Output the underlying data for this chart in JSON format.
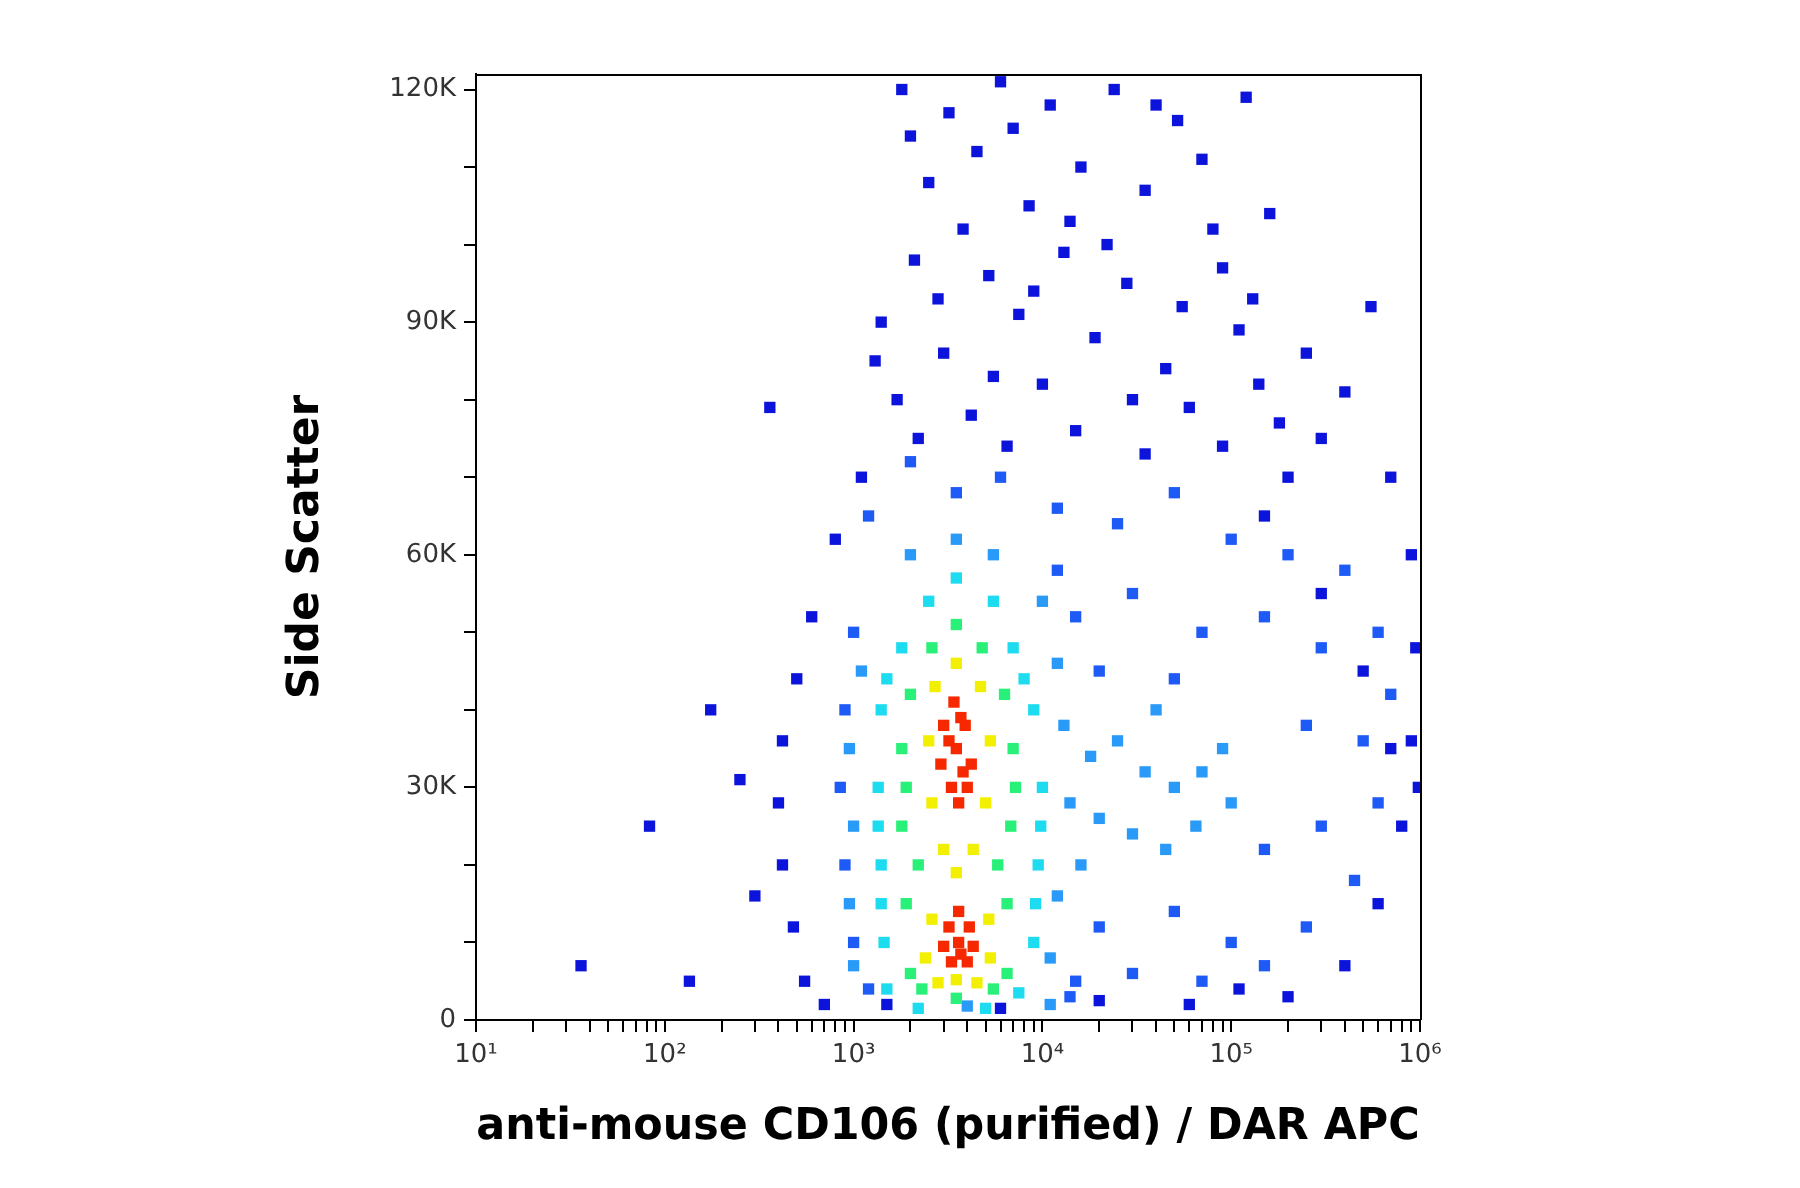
{
  "chart_data": {
    "type": "scatter",
    "xlabel": "anti-mouse CD106 (purified) / DAR APC",
    "ylabel": "Side Scatter",
    "log": "x",
    "marker": "square",
    "xlim": [
      10,
      1000000
    ],
    "ylim": [
      0,
      122000
    ],
    "xticks": [
      {
        "value": 10,
        "label": "10¹"
      },
      {
        "value": 20,
        "label": null
      },
      {
        "value": 30,
        "label": null
      },
      {
        "value": 40,
        "label": null
      },
      {
        "value": 50,
        "label": null
      },
      {
        "value": 60,
        "label": null
      },
      {
        "value": 70,
        "label": null
      },
      {
        "value": 80,
        "label": null
      },
      {
        "value": 90,
        "label": null
      },
      {
        "value": 100,
        "label": "10²"
      },
      {
        "value": 200,
        "label": null
      },
      {
        "value": 300,
        "label": null
      },
      {
        "value": 400,
        "label": null
      },
      {
        "value": 500,
        "label": null
      },
      {
        "value": 600,
        "label": null
      },
      {
        "value": 700,
        "label": null
      },
      {
        "value": 800,
        "label": null
      },
      {
        "value": 900,
        "label": null
      },
      {
        "value": 1000,
        "label": "10³"
      },
      {
        "value": 2000,
        "label": null
      },
      {
        "value": 3000,
        "label": null
      },
      {
        "value": 4000,
        "label": null
      },
      {
        "value": 5000,
        "label": null
      },
      {
        "value": 6000,
        "label": null
      },
      {
        "value": 7000,
        "label": null
      },
      {
        "value": 8000,
        "label": null
      },
      {
        "value": 9000,
        "label": null
      },
      {
        "value": 10000,
        "label": "10⁴"
      },
      {
        "value": 20000,
        "label": null
      },
      {
        "value": 30000,
        "label": null
      },
      {
        "value": 40000,
        "label": null
      },
      {
        "value": 50000,
        "label": null
      },
      {
        "value": 60000,
        "label": null
      },
      {
        "value": 70000,
        "label": null
      },
      {
        "value": 80000,
        "label": null
      },
      {
        "value": 90000,
        "label": null
      },
      {
        "value": 100000,
        "label": "10⁵"
      },
      {
        "value": 200000,
        "label": null
      },
      {
        "value": 300000,
        "label": null
      },
      {
        "value": 400000,
        "label": null
      },
      {
        "value": 500000,
        "label": null
      },
      {
        "value": 600000,
        "label": null
      },
      {
        "value": 700000,
        "label": null
      },
      {
        "value": 800000,
        "label": null
      },
      {
        "value": 900000,
        "label": null
      },
      {
        "value": 1000000,
        "label": "10⁶"
      }
    ],
    "yticks": [
      0,
      {
        "value": 10000,
        "label": null
      },
      {
        "value": 20000,
        "label": null
      },
      {
        "value": 30000,
        "label": "30K"
      },
      {
        "value": 40000,
        "label": null
      },
      {
        "value": 50000,
        "label": null
      },
      {
        "value": 60000,
        "label": "60K"
      },
      {
        "value": 70000,
        "label": null
      },
      {
        "value": 80000,
        "label": null
      },
      {
        "value": 90000,
        "label": "90K"
      },
      {
        "value": 100000,
        "label": null
      },
      {
        "value": 110000,
        "label": null
      },
      {
        "value": 120000,
        "label": "120K"
      }
    ],
    "series": [
      {
        "color": "#0c14dc",
        "x": [
          1800,
          3200,
          6000,
          11000,
          24000,
          52000,
          120000,
          2500,
          4500,
          8500,
          16000,
          35000,
          70000,
          160000,
          2100,
          5200,
          13000,
          28000,
          90000,
          1400,
          3000,
          7500,
          19000,
          45000,
          110000,
          250000,
          1700,
          4200,
          10000,
          60000,
          180000,
          400000,
          1100,
          800,
          600,
          500,
          420,
          400,
          420,
          480,
          550,
          700,
          360,
          175,
          83,
          36,
          135,
          300,
          250,
          700000,
          900000,
          950000,
          900000,
          800000,
          600000,
          400000,
          200000,
          550000,
          980000,
          1500,
          6000,
          20000,
          60000,
          110000,
          300000,
          150000,
          500000,
          700000,
          2000,
          3800,
          7000,
          14000,
          40000,
          80000,
          2800,
          9000,
          22000,
          55000,
          130000,
          1300,
          5500,
          30000,
          140000,
          300000,
          2200,
          6500,
          15000,
          35000,
          90000,
          200000
        ],
        "values": [
          120000,
          117000,
          121000,
          118000,
          120000,
          116000,
          119000,
          108000,
          112000,
          105000,
          110000,
          107000,
          111000,
          104000,
          98000,
          96000,
          99000,
          95000,
          97000,
          90000,
          86000,
          91000,
          88000,
          84000,
          89000,
          86000,
          80000,
          78000,
          82000,
          79000,
          77000,
          81000,
          70000,
          62000,
          52000,
          44000,
          36000,
          28000,
          20000,
          12000,
          5000,
          2000,
          79000,
          40000,
          25000,
          7000,
          5000,
          16000,
          31000,
          70000,
          60000,
          48000,
          36000,
          25000,
          15000,
          7000,
          3000,
          92000,
          30000,
          2000,
          1500,
          2500,
          2000,
          4000,
          55000,
          65000,
          45000,
          35000,
          114000,
          102000,
          115000,
          103000,
          118000,
          102000,
          93000,
          94000,
          100000,
          92000,
          93000,
          85000,
          83000,
          80000,
          82000,
          75000,
          75000,
          74000,
          76000,
          73000,
          74000,
          70000
        ]
      },
      {
        "color": "#1e5af5",
        "x": [
          1200,
          2000,
          3500,
          6000,
          12000,
          25000,
          50000,
          100000,
          200000,
          400000,
          1000,
          12000,
          15000,
          30000,
          70000,
          150000,
          300000,
          600000,
          900,
          20000,
          50000,
          250000,
          500000,
          700000,
          850,
          150000,
          300000,
          600000,
          900,
          20000,
          50000,
          100000,
          250000,
          450000,
          1000,
          1200,
          14000,
          15000,
          30000,
          70000,
          150000
        ],
        "values": [
          65000,
          72000,
          68000,
          70000,
          66000,
          64000,
          68000,
          62000,
          60000,
          58000,
          50000,
          58000,
          52000,
          55000,
          50000,
          52000,
          48000,
          50000,
          40000,
          45000,
          44000,
          38000,
          36000,
          42000,
          30000,
          22000,
          25000,
          28000,
          20000,
          12000,
          14000,
          10000,
          12000,
          18000,
          10000,
          4000,
          3000,
          5000,
          6000,
          5000,
          7000
        ]
      },
      {
        "color": "#2a9af8",
        "x": [
          13000,
          18000,
          25000,
          35000,
          50000,
          70000,
          100000,
          14000,
          20000,
          30000,
          45000,
          65000,
          90000,
          40000,
          16000,
          12000,
          10000,
          2000,
          3500,
          5500,
          1100,
          950,
          1000,
          950,
          1000,
          4000,
          11000,
          11000,
          12000
        ],
        "values": [
          38000,
          34000,
          36000,
          32000,
          30000,
          32000,
          28000,
          28000,
          26000,
          24000,
          22000,
          25000,
          35000,
          40000,
          20000,
          46000,
          54000,
          60000,
          62000,
          60000,
          45000,
          35000,
          25000,
          15000,
          7000,
          1800,
          2000,
          8000,
          16000
        ]
      },
      {
        "color": "#1edcf0",
        "x": [
          3500,
          2500,
          5500,
          1800,
          7000,
          1400,
          9000,
          1350,
          10000,
          1400,
          9500,
          1450,
          9000,
          1500,
          2200,
          5000,
          7500,
          1500,
          8000,
          1350,
          9800,
          1400,
          9200
        ],
        "values": [
          57000,
          54000,
          54000,
          48000,
          48000,
          40000,
          40000,
          30000,
          30000,
          20000,
          20000,
          10000,
          10000,
          4000,
          1500,
          1500,
          3500,
          44000,
          44000,
          25000,
          25000,
          15000,
          15000
        ]
      },
      {
        "color": "#28f078",
        "x": [
          3500,
          2600,
          4800,
          2000,
          6300,
          1800,
          7000,
          1800,
          6800,
          1900,
          6500,
          2000,
          6500,
          3500,
          2300,
          5500,
          2200,
          5800,
          1900,
          7200
        ],
        "values": [
          51000,
          48000,
          48000,
          42000,
          42000,
          35000,
          35000,
          25000,
          25000,
          15000,
          15000,
          6000,
          6000,
          2800,
          4000,
          4000,
          20000,
          20000,
          30000,
          30000
        ]
      },
      {
        "color": "#f2f000",
        "x": [
          3500,
          2700,
          4700,
          2500,
          5300,
          2600,
          5000,
          3000,
          4300,
          3500,
          2600,
          5200,
          2400,
          5300,
          3500,
          2800,
          4500
        ],
        "values": [
          46000,
          43000,
          43000,
          36000,
          36000,
          28000,
          28000,
          22000,
          22000,
          19000,
          13000,
          13000,
          8000,
          8000,
          5200,
          4800,
          4800
        ]
      },
      {
        "color": "#f52800",
        "x": [
          3400,
          3000,
          3900,
          3500,
          2900,
          4200,
          3300,
          4000,
          3600,
          3700,
          3200,
          3800,
          3600,
          3200,
          4100,
          3000,
          3600,
          4300,
          3300,
          4000,
          3700
        ],
        "values": [
          41000,
          38000,
          38000,
          35000,
          33000,
          33000,
          30000,
          30000,
          28000,
          39000,
          36000,
          32000,
          14000,
          12000,
          12000,
          9500,
          10000,
          9500,
          7500,
          7500,
          8500
        ]
      }
    ]
  }
}
